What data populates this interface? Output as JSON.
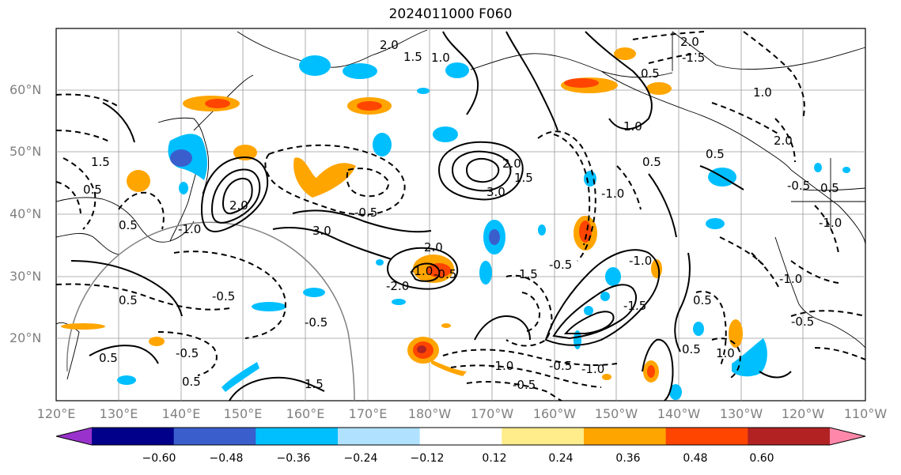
{
  "title": "2024011000 F060",
  "axes": {
    "lat_labels": [
      "60°N",
      "50°N",
      "40°N",
      "30°N",
      "20°N"
    ],
    "lon_labels": [
      "120°E",
      "130°E",
      "140°E",
      "150°E",
      "160°E",
      "170°E",
      "180°W",
      "170°W",
      "160°W",
      "150°W",
      "140°W",
      "130°W",
      "120°W",
      "110°W"
    ]
  },
  "colorbar": {
    "ticks": [
      "−0.60",
      "−0.48",
      "−0.36",
      "−0.24",
      "−0.12",
      "0.12",
      "0.24",
      "0.36",
      "0.48",
      "0.60"
    ],
    "colors": [
      "#9932cc",
      "#00008b",
      "#3a5fcd",
      "#00bfff",
      "#b0e2ff",
      "#ffffff",
      "#ffec8b",
      "#ffa500",
      "#ff4500",
      "#b22222",
      "#ff88aa"
    ]
  },
  "contour_labels": [
    "2.0",
    "1.5",
    "1.0",
    "2.0",
    "-1.5",
    "0.5",
    "1.0",
    "0.5",
    "1.5",
    "2.0",
    "3.0",
    "-1.0",
    "0.5",
    "1.0",
    "-0.5",
    "2.0",
    "0.5",
    "-1.0",
    "2.0",
    "0.5",
    "1.5",
    "-1.0",
    "0.5",
    "-0.5",
    "-0.5",
    "0.5",
    "-0.5",
    "-0.5",
    "0.5",
    "0.5",
    "1.5",
    "3.0",
    "2.0",
    "-1.0",
    "-2.0",
    "-0.5",
    "1.5",
    "-0.5",
    "-1.0",
    "-1.5",
    "-1.0",
    "-0.5",
    "-1.0",
    "-0.5",
    "0.5",
    "0.5",
    "1.0",
    "-0.5",
    "-1.0"
  ]
}
